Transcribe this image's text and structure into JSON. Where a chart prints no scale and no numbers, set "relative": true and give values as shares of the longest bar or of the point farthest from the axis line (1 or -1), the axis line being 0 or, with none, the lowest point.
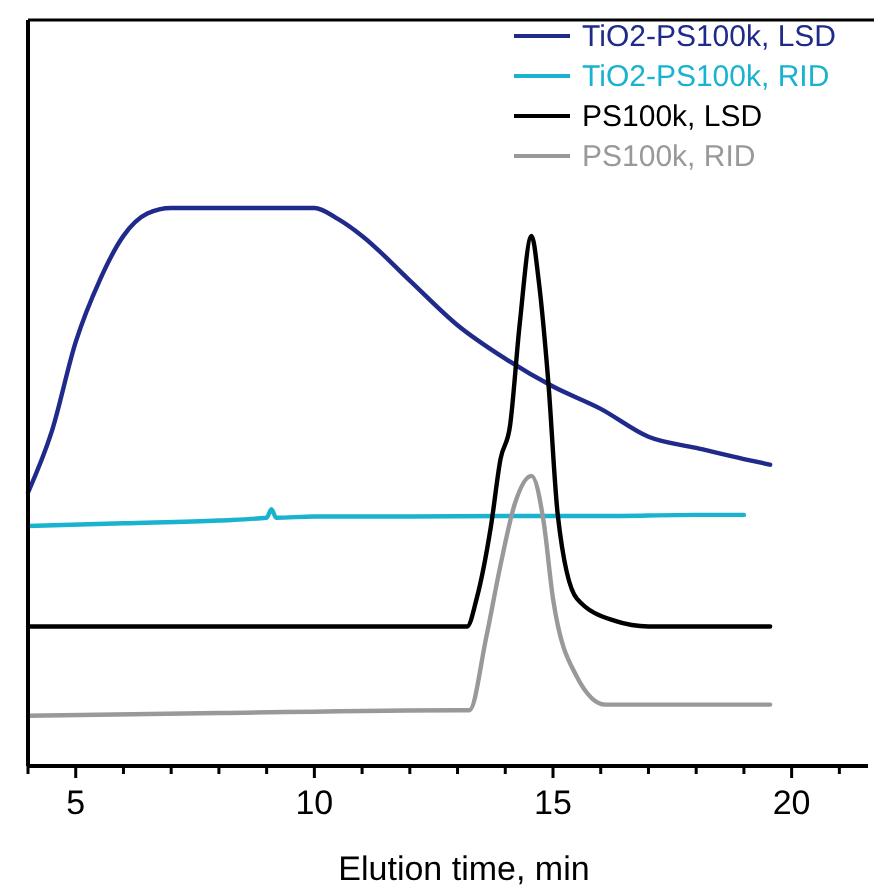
{
  "chart_data": {
    "type": "line",
    "xlabel": "Elution time, min",
    "relative": true,
    "tick_labels": "x",
    "legend": "top right",
    "grid": false,
    "line_style": "solid",
    "xlim": [
      4,
      21.6
    ],
    "xticks": [
      {
        "value": 4,
        "label": null
      },
      5,
      {
        "value": 6,
        "label": null
      },
      {
        "value": 7,
        "label": null
      },
      {
        "value": 8,
        "label": null
      },
      {
        "value": 9,
        "label": null
      },
      10,
      {
        "value": 11,
        "label": null
      },
      {
        "value": 12,
        "label": null
      },
      {
        "value": 13,
        "label": null
      },
      {
        "value": 14,
        "label": null
      },
      15,
      {
        "value": 16,
        "label": null
      },
      {
        "value": 17,
        "label": null
      },
      {
        "value": 18,
        "label": null
      },
      {
        "value": 19,
        "label": null
      },
      20,
      {
        "value": 21,
        "label": null
      }
    ],
    "series": [
      {
        "name": "TiO2-PS100k, LSD",
        "color": "#1f2a8a",
        "x": [
          4,
          4.5,
          5,
          5.5,
          6,
          6.5,
          7,
          8,
          9,
          10,
          10.5,
          11,
          12,
          13,
          14,
          15,
          16,
          17,
          18,
          19,
          19.55
        ],
        "values": [
          0.49,
          0.6,
          0.76,
          0.87,
          0.95,
          0.99,
          1,
          1,
          1,
          1,
          0.98,
          0.95,
          0.87,
          0.79,
          0.73,
          0.68,
          0.64,
          0.59,
          0.57,
          0.55,
          0.54
        ]
      },
      {
        "name": "TiO2-PS100k, RID",
        "color": "#1ab3cf",
        "x": [
          4,
          6,
          8,
          9,
          9.1,
          9.2,
          10,
          12,
          14,
          16,
          18,
          19
        ],
        "values": [
          0.43,
          0.435,
          0.44,
          0.445,
          0.46,
          0.445,
          0.447,
          0.447,
          0.448,
          0.448,
          0.45,
          0.45
        ]
      },
      {
        "name": "PS100k, LSD",
        "color": "#000000",
        "x": [
          4,
          8,
          12,
          13.2,
          13.4,
          13.7,
          13.9,
          14.1,
          14.3,
          14.55,
          14.7,
          14.9,
          15.1,
          15.5,
          16.3,
          17,
          19.55
        ],
        "values": [
          0.25,
          0.25,
          0.25,
          0.25,
          0.3,
          0.43,
          0.55,
          0.61,
          0.79,
          0.95,
          0.87,
          0.69,
          0.45,
          0.3,
          0.26,
          0.25,
          0.25
        ]
      },
      {
        "name": "PS100k, RID",
        "color": "#999999",
        "x": [
          4,
          8,
          13,
          13.25,
          13.6,
          13.9,
          14.2,
          14.55,
          14.8,
          15,
          15.5,
          16.1,
          17,
          19.55
        ],
        "values": [
          0.09,
          0.095,
          0.1,
          0.1,
          0.23,
          0.36,
          0.47,
          0.52,
          0.44,
          0.3,
          0.16,
          0.11,
          0.11,
          0.11
        ]
      }
    ]
  }
}
